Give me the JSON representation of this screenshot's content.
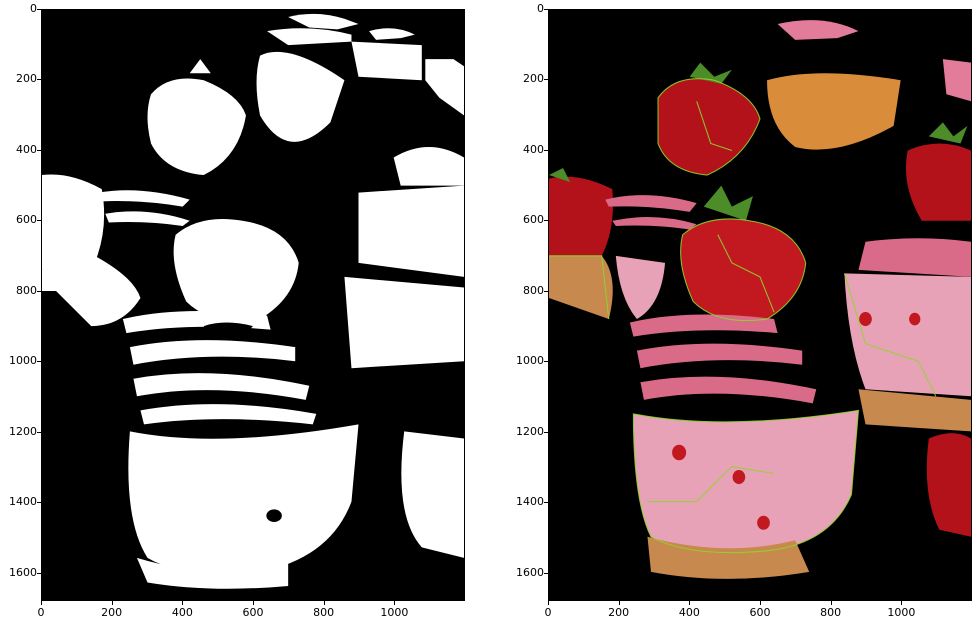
{
  "panels": [
    {
      "name": "binary-threshold-panel",
      "y_ticks": [
        "0",
        "200",
        "400",
        "600",
        "800",
        "1000",
        "1200",
        "1400",
        "1600"
      ],
      "x_ticks": [
        "0",
        "200",
        "400",
        "600",
        "800",
        "1000"
      ]
    },
    {
      "name": "segmented-overlay-panel",
      "y_ticks": [
        "0",
        "200",
        "400",
        "600",
        "800",
        "1000",
        "1200",
        "1400",
        "1600"
      ],
      "x_ticks": [
        "0",
        "200",
        "400",
        "600",
        "800",
        "1000"
      ]
    }
  ],
  "colors": {
    "background": "#000000",
    "mask_white": "#ffffff",
    "cake_pink": "#d96a88",
    "cupcake_liner": "#e7a2b8",
    "cake_base": "#c7894e",
    "strawberry_red": "#b3121a",
    "leaf_green": "#4c8d2a",
    "orange_top": "#d98c3a",
    "segment_lines": "#8fd62a"
  }
}
